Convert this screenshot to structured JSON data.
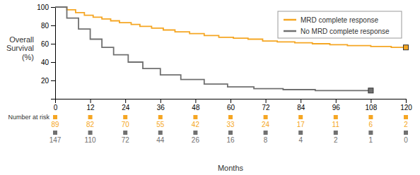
{
  "chart_data": {
    "type": "step",
    "xlabel": "Months",
    "ylabel": "Overall\nSurvival\n(%)",
    "xlim": [
      0,
      120
    ],
    "ylim": [
      0,
      100
    ],
    "xticks": [
      0,
      12,
      24,
      36,
      48,
      60,
      72,
      84,
      96,
      108,
      120
    ],
    "yticks": [
      20,
      40,
      60,
      80,
      100
    ],
    "grid": false,
    "legend": "upper right",
    "risk_label": "Number at risk",
    "series": [
      {
        "name": "MRD complete response",
        "color": "#f5a623",
        "x": [
          0,
          4,
          7,
          10,
          13,
          16,
          19,
          22,
          26,
          29,
          33,
          37,
          41,
          46,
          51,
          56,
          61,
          66,
          71,
          76,
          82,
          88,
          94,
          100,
          108,
          115,
          120
        ],
        "values": [
          100,
          97,
          94,
          91,
          89,
          87,
          85,
          83,
          81,
          79,
          77,
          75,
          73,
          71,
          69,
          67,
          66,
          65,
          63,
          62,
          61,
          60,
          59,
          58,
          57,
          56,
          56
        ],
        "end_x": 120,
        "end_y": 56,
        "at_risk": [
          89,
          82,
          70,
          55,
          42,
          33,
          24,
          17,
          11,
          6,
          2
        ]
      },
      {
        "name": "No MRD complete response",
        "color": "#707070",
        "x": [
          0,
          4,
          8,
          12,
          16,
          20,
          25,
          30,
          36,
          43,
          51,
          59,
          68,
          78,
          89,
          100,
          108
        ],
        "values": [
          100,
          88,
          76,
          65,
          56,
          48,
          40,
          33,
          26,
          21,
          16,
          13,
          11,
          10,
          9,
          9,
          9
        ],
        "end_x": 108,
        "end_y": 9,
        "at_risk": [
          147,
          110,
          72,
          44,
          26,
          16,
          8,
          4,
          2,
          1,
          0
        ]
      }
    ]
  }
}
